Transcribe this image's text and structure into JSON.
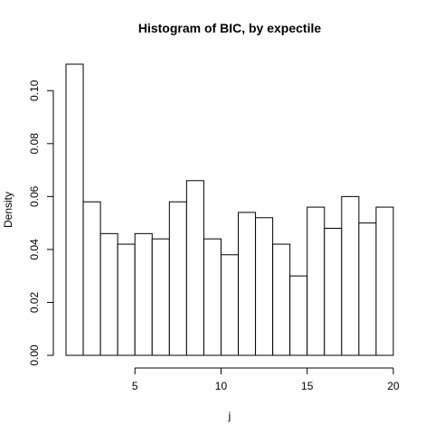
{
  "chart_data": {
    "type": "bar",
    "title": "Histogram of BIC,  by expectile",
    "xlabel": "j",
    "ylabel": "Density",
    "bin_edges": [
      1,
      2,
      3,
      4,
      5,
      6,
      7,
      8,
      9,
      10,
      11,
      12,
      13,
      14,
      15,
      16,
      17,
      18,
      19,
      20
    ],
    "values": [
      0.11,
      0.058,
      0.046,
      0.042,
      0.046,
      0.044,
      0.058,
      0.066,
      0.044,
      0.038,
      0.054,
      0.052,
      0.042,
      0.03,
      0.056,
      0.048,
      0.06,
      0.05,
      0.056
    ],
    "xlim": [
      1,
      20
    ],
    "ylim": [
      0,
      0.11
    ],
    "x_ticks": [
      5,
      10,
      15,
      20
    ],
    "x_tick_labels": [
      "5",
      "10",
      "15",
      "20"
    ],
    "y_ticks": [
      0,
      0.02,
      0.04,
      0.06,
      0.08,
      0.1
    ],
    "y_tick_labels": [
      "0.00",
      "0.02",
      "0.04",
      "0.06",
      "0.08",
      "0.10"
    ],
    "grid": false,
    "legend": "none",
    "bar_fill": "#ffffff",
    "bar_stroke": "#000000"
  }
}
